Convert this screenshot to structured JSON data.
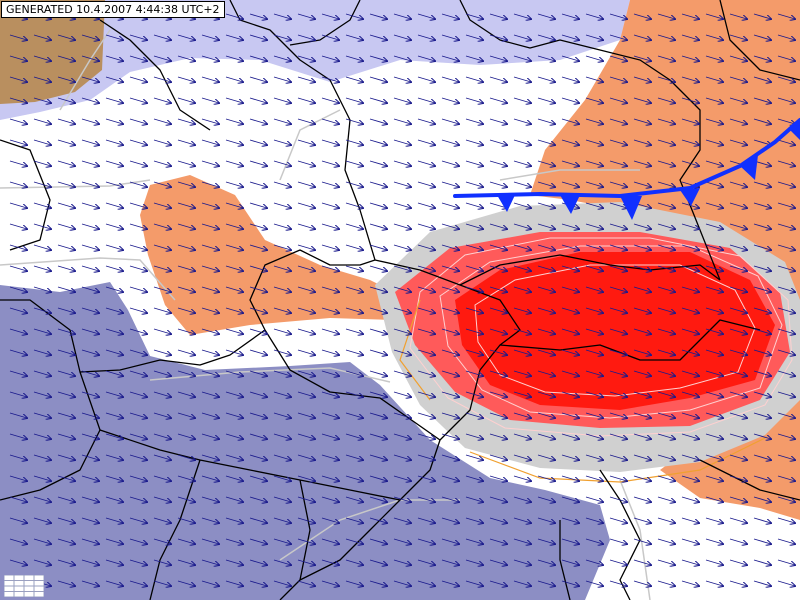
{
  "header": {
    "generated_label": "GENERATED 10.4.2007 4:44:38 UTC+2"
  },
  "map": {
    "colors": {
      "background": "#ffffff",
      "light_blue_zone": "#c8c8f2",
      "slate_zone": "#8c8ec4",
      "orange_zone": "#f49b6a",
      "brown_zone": "#b98f5f",
      "grey_band": "#d0d0d0",
      "red_core": "#ff1a10",
      "red_contour": "#ff5a5a",
      "wind_arrows": "#1a1a8c",
      "borders": "#000000",
      "isolines": "#c8c8c8",
      "cold_front": "#1030ff"
    },
    "icons": {
      "wind": "arrow-icon",
      "front": "cold-front-triangle-icon",
      "legend": "legend-grid-icon"
    },
    "front_type": "cold-front"
  }
}
